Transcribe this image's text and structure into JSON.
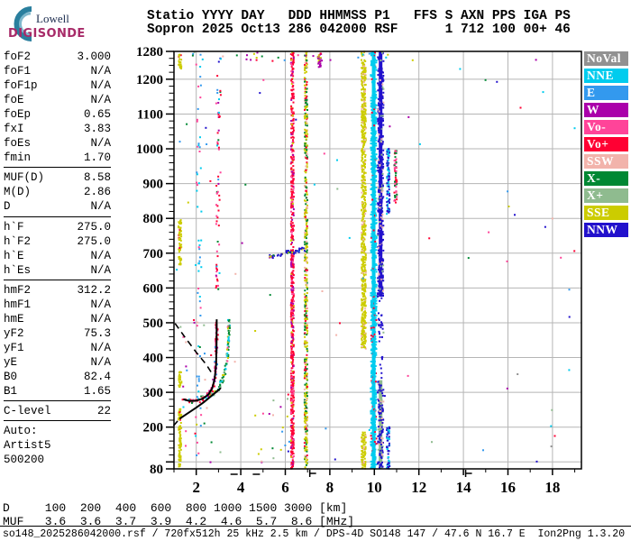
{
  "logo": {
    "brand_top": "Lowell",
    "brand_bottom": "DIGISONDE"
  },
  "header": {
    "line1": "Statio YYYY DAY   DDD HHMMSS P1   FFS S AXN PPS IGA PS",
    "line2": "Sopron 2025 Oct13 286 042000 RSF      1 712 100 00+ 46"
  },
  "params": {
    "groups": [
      {
        "rows": [
          {
            "label": "foF2",
            "value": "3.000"
          },
          {
            "label": "foF1",
            "value": "N/A"
          },
          {
            "label": "foF1p",
            "value": "N/A"
          },
          {
            "label": "foE",
            "value": "N/A"
          },
          {
            "label": "foEp",
            "value": "0.65"
          },
          {
            "label": "fxI",
            "value": "3.83"
          },
          {
            "label": "foEs",
            "value": "N/A"
          },
          {
            "label": "fmin",
            "value": "1.70"
          }
        ]
      },
      {
        "rows": [
          {
            "label": "MUF(D)",
            "value": "8.58"
          },
          {
            "label": "M(D)",
            "value": "2.86"
          },
          {
            "label": "D",
            "value": "N/A"
          }
        ]
      },
      {
        "rows": [
          {
            "label": "h`F",
            "value": "275.0"
          },
          {
            "label": "h`F2",
            "value": "275.0"
          },
          {
            "label": "h`E",
            "value": "N/A"
          },
          {
            "label": "h`Es",
            "value": "N/A"
          }
        ]
      },
      {
        "rows": [
          {
            "label": "hmF2",
            "value": "312.2"
          },
          {
            "label": "hmF1",
            "value": "N/A"
          },
          {
            "label": "hmE",
            "value": "N/A"
          },
          {
            "label": "yF2",
            "value": "75.3"
          },
          {
            "label": "yF1",
            "value": "N/A"
          },
          {
            "label": "yE",
            "value": "N/A"
          },
          {
            "label": "B0",
            "value": "82.4"
          },
          {
            "label": "B1",
            "value": "1.65"
          }
        ]
      },
      {
        "rows": [
          {
            "label": "C-level",
            "value": "22"
          }
        ]
      }
    ],
    "footer_lines": [
      "Auto:",
      "Artist5",
      "500200"
    ]
  },
  "bottom": {
    "d_row": "D     100  200  400  600  800 1000 1500 3000 [km]",
    "muf_row": "MUF   3.6  3.6  3.7  3.9  4.2  4.6  5.7  8.6 [MHz]",
    "status": "so148_2025286042000.rsf / 720fx512h 25 kHz 2.5 km / DPS-4D SO148 147 / 47.6 N 16.7 E  Ion2Png 1.3.20"
  },
  "chart_data": {
    "type": "scatter",
    "title": "Sopron Digisonde ionogram 2025 Oct13 286 042000",
    "xlabel": "[MHz]",
    "ylabel": "[km]",
    "x_axis": {
      "min": 1.0,
      "max": 19.3,
      "major_ticks": [
        2,
        4,
        6,
        8,
        10,
        12,
        14,
        16,
        18
      ],
      "minor_step": 1
    },
    "y_axis": {
      "min": 80,
      "max": 1280,
      "labeled_ticks": [
        1280,
        1200,
        1100,
        1000,
        900,
        800,
        700,
        600,
        500,
        400,
        300,
        200,
        80
      ],
      "minor_step": 20
    },
    "grid": true,
    "grid_color": "#b5b5b5",
    "muf_markers": [
      3.7,
      4.7
    ],
    "band_markers": [
      7.1,
      14.1
    ],
    "legend": [
      {
        "label": "NoVal",
        "color": "#919191"
      },
      {
        "label": "NNE",
        "color": "#00ccee"
      },
      {
        "label": "E",
        "color": "#3399ee"
      },
      {
        "label": "W",
        "color": "#aa00aa"
      },
      {
        "label": "Vo-",
        "color": "#ff4499"
      },
      {
        "label": "Vo+",
        "color": "#ff0033"
      },
      {
        "label": "SSW",
        "color": "#f2b3ab"
      },
      {
        "label": "X-",
        "color": "#008833"
      },
      {
        "label": "X+",
        "color": "#8fbb8f"
      },
      {
        "label": "SSE",
        "color": "#cccc00"
      },
      {
        "label": "NNW",
        "color": "#2211cc"
      }
    ],
    "fitted_curves": [
      {
        "name": "topside-extrapolated",
        "style": "dashed",
        "points": [
          [
            1.05,
            498
          ],
          [
            1.5,
            458
          ],
          [
            2.0,
            415
          ],
          [
            2.45,
            380
          ],
          [
            2.77,
            348
          ]
        ]
      },
      {
        "name": "f2-trace-fit",
        "style": "solid",
        "points": [
          [
            1.42,
            280
          ],
          [
            1.7,
            275
          ],
          [
            2.0,
            276
          ],
          [
            2.3,
            282
          ],
          [
            2.55,
            294
          ],
          [
            2.72,
            312
          ],
          [
            2.83,
            340
          ],
          [
            2.89,
            380
          ],
          [
            2.91,
            430
          ],
          [
            2.92,
            510
          ]
        ]
      },
      {
        "name": "true-height-profile",
        "style": "solid",
        "points": [
          [
            1.25,
            224
          ],
          [
            1.6,
            239
          ],
          [
            2.0,
            256
          ],
          [
            2.35,
            272
          ],
          [
            2.65,
            288
          ],
          [
            2.9,
            301
          ],
          [
            3.05,
            309
          ],
          [
            3.1,
            313
          ]
        ]
      },
      {
        "name": "profile-bottom-extrapolated",
        "style": "dashed",
        "points": [
          [
            0.98,
            204
          ],
          [
            1.25,
            224
          ]
        ]
      }
    ],
    "echo_traces": [
      {
        "name": "F2-O-mode-trace",
        "count": 115,
        "jitter_f": 0.07,
        "jitter_h": 9,
        "colors": {
          "Vo+": 0.5,
          "Vo-": 0.2,
          "W": 0.08,
          "E": 0.07,
          "NNE": 0.1,
          "X-": 0.05
        },
        "points": [
          [
            1.42,
            280
          ],
          [
            1.7,
            275
          ],
          [
            2.0,
            276
          ],
          [
            2.3,
            282
          ],
          [
            2.55,
            294
          ],
          [
            2.72,
            312
          ],
          [
            2.83,
            340
          ],
          [
            2.89,
            380
          ],
          [
            2.91,
            430
          ],
          [
            2.92,
            510
          ]
        ]
      },
      {
        "name": "F2-X-mode-trace",
        "count": 85,
        "jitter_f": 0.06,
        "jitter_h": 10,
        "colors": {
          "X-": 0.5,
          "X+": 0.12,
          "NNE": 0.25,
          "SSE": 0.08,
          "Vo-": 0.05
        },
        "points": [
          [
            2.62,
            288
          ],
          [
            2.8,
            296
          ],
          [
            3.0,
            310
          ],
          [
            3.15,
            330
          ],
          [
            3.28,
            356
          ],
          [
            3.37,
            390
          ],
          [
            3.43,
            430
          ],
          [
            3.46,
            475
          ],
          [
            3.47,
            505
          ]
        ]
      },
      {
        "name": "spread-above-foF2",
        "count": 60,
        "jitter_f": 0.12,
        "jitter_h": 90,
        "colors": {
          "Vo+": 0.35,
          "Vo-": 0.25,
          "W": 0.1,
          "NNE": 0.15,
          "X-": 0.08,
          "E": 0.07
        },
        "points": [
          [
            2.95,
            600
          ],
          [
            2.95,
            750
          ],
          [
            2.98,
            900
          ],
          [
            3.0,
            1050
          ],
          [
            2.98,
            1180
          ]
        ]
      },
      {
        "name": "second-hop-F",
        "count": 52,
        "jitter_f": 0.1,
        "jitter_h": 7,
        "colors": {
          "NNW": 0.6,
          "SSE": 0.15,
          "X-": 0.08,
          "NNE": 0.09,
          "W": 0.08
        },
        "points": [
          [
            5.25,
            688
          ],
          [
            5.6,
            694
          ],
          [
            5.95,
            700
          ],
          [
            6.3,
            704
          ],
          [
            6.65,
            708
          ],
          [
            6.9,
            714
          ]
        ]
      }
    ],
    "rfi_lines": [
      {
        "freq": 1.27,
        "width": 2,
        "density": 0.5,
        "solid": false,
        "colors": {
          "SSE": 0.9,
          "Vo+": 0.1
        },
        "segments": [
          [
            85,
            255
          ],
          [
            315,
            365
          ],
          [
            665,
            795
          ],
          [
            1230,
            1272
          ]
        ]
      },
      {
        "freq": 2.1,
        "width": 4,
        "density": 0.05,
        "solid": false,
        "colors": {
          "E": 0.4,
          "Vo-": 0.3,
          "NNE": 0.3
        },
        "segments": [
          [
            85,
            1275
          ]
        ]
      },
      {
        "freq": 6.32,
        "width": 2,
        "density": 0.55,
        "solid": false,
        "colors": {
          "Vo+": 0.62,
          "Vo-": 0.15,
          "W": 0.13,
          "SSE": 0.1
        },
        "segments": [
          [
            80,
            1280
          ]
        ]
      },
      {
        "freq": 6.93,
        "width": 2,
        "density": 0.45,
        "solid": false,
        "colors": {
          "SSE": 0.42,
          "X-": 0.28,
          "Vo+": 0.15,
          "SSW": 0.15
        },
        "segments": [
          [
            80,
            1280
          ]
        ]
      },
      {
        "freq": 7.55,
        "width": 3,
        "density": 0.6,
        "solid": false,
        "colors": {
          "W": 0.6,
          "SSE": 0.4
        },
        "segments": [
          [
            1232,
            1278
          ]
        ]
      },
      {
        "freq": 9.52,
        "width": 3,
        "density": 0.8,
        "solid": false,
        "colors": {
          "SSE": 0.85,
          "SSW": 0.15
        },
        "segments": [
          [
            425,
            1280
          ],
          [
            80,
            185
          ]
        ]
      },
      {
        "freq": 9.97,
        "width": 4,
        "density": 0.5,
        "solid": true,
        "colors": {
          "NNE": 0.92,
          "Vo+": 0.08
        },
        "segments": [
          [
            80,
            1280
          ]
        ]
      },
      {
        "freq": 10.28,
        "width": 4,
        "density": 0.5,
        "solid": true,
        "colors": {
          "NNW": 0.78,
          "SSW": 0.13,
          "X+": 0.09
        },
        "segments": [
          [
            575,
            1280
          ],
          [
            80,
            335
          ]
        ]
      },
      {
        "freq": 10.28,
        "width": 3,
        "density": 0.12,
        "solid": false,
        "colors": {
          "NNW": 1.0
        },
        "segments": [
          [
            335,
            575
          ]
        ]
      },
      {
        "freq": 10.62,
        "width": 2,
        "density": 0.5,
        "solid": false,
        "colors": {
          "NNW": 0.55,
          "NNE": 0.45
        },
        "segments": [
          [
            810,
            1000
          ],
          [
            80,
            200
          ]
        ]
      },
      {
        "freq": 10.95,
        "width": 2,
        "density": 0.35,
        "solid": false,
        "colors": {
          "X-": 0.4,
          "Vo+": 0.3,
          "Vo-": 0.3
        },
        "segments": [
          [
            845,
            1000
          ]
        ]
      }
    ],
    "sparse_noise": [
      {
        "count": 70,
        "f_range": [
          1.1,
          19.2
        ],
        "h_range": [
          85,
          1275
        ]
      },
      {
        "count": 30,
        "f_range": [
          1.6,
          10.8
        ],
        "h_range": [
          1250,
          1278
        ]
      },
      {
        "count": 25,
        "f_range": [
          1.3,
          2.8
        ],
        "h_range": [
          90,
          520
        ]
      },
      {
        "count": 20,
        "f_range": [
          4.5,
          6.2
        ],
        "h_range": [
          85,
          300
        ]
      }
    ]
  }
}
